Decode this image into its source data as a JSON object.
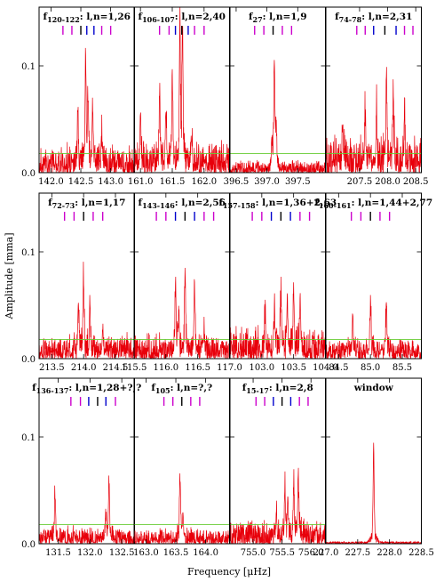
{
  "figure": {
    "xlabel": "Frequency [μHz]",
    "ylabel": "Amplitude [mma]",
    "colors": {
      "signal": "#e8000b",
      "threshold": "#66cc33",
      "dipole": "#cc00cc",
      "quadrupole": "#0000cc",
      "central": "#000000"
    }
  },
  "chart_data": [
    {
      "type": "line",
      "row": 0,
      "col": 0,
      "title_main": "f",
      "title_sub": "120-122",
      "title_tail": ": l,n=1,26",
      "xlim": [
        141.8,
        143.4
      ],
      "xticks": [
        142.0,
        142.5,
        143.0
      ],
      "xticklabels": [
        "142.0",
        "142.5",
        "143.0"
      ],
      "ylim": [
        0,
        0.155
      ],
      "yticks": [
        0.0,
        0.1
      ],
      "yticklabels": [
        "0.0",
        "0.1"
      ],
      "threshold": 0.018,
      "ticks": [
        {
          "x": 142.2,
          "c": "m"
        },
        {
          "x": 142.35,
          "c": "m"
        },
        {
          "x": 142.5,
          "c": "k"
        },
        {
          "x": 142.6,
          "c": "b"
        },
        {
          "x": 142.72,
          "c": "b"
        },
        {
          "x": 142.85,
          "c": "m"
        },
        {
          "x": 143.0,
          "c": "m"
        }
      ],
      "peaks": [
        {
          "x": 142.58,
          "a": 0.085
        },
        {
          "x": 142.7,
          "a": 0.05
        },
        {
          "x": 142.45,
          "a": 0.04
        },
        {
          "x": 142.62,
          "a": 0.055
        },
        {
          "x": 142.85,
          "a": 0.032
        }
      ],
      "noise": 0.018,
      "seed": 11
    },
    {
      "type": "line",
      "row": 0,
      "col": 1,
      "title_main": "f",
      "title_sub": "106-107",
      "title_tail": ": l,n=2,40",
      "xlim": [
        160.9,
        162.4
      ],
      "xticks": [
        161.0,
        161.5,
        162.0
      ],
      "xticklabels": [
        "161.0",
        "161.5",
        "162.0"
      ],
      "ylim": [
        0,
        0.155
      ],
      "yticks": [
        0.0,
        0.1
      ],
      "yticklabels": [
        "0.0",
        "0.1"
      ],
      "threshold": 0.018,
      "ticks": [
        {
          "x": 161.3,
          "c": "m"
        },
        {
          "x": 161.45,
          "c": "m"
        },
        {
          "x": 161.55,
          "c": "b"
        },
        {
          "x": 161.65,
          "c": "k"
        },
        {
          "x": 161.75,
          "c": "b"
        },
        {
          "x": 161.85,
          "c": "m"
        },
        {
          "x": 162.0,
          "c": "m"
        }
      ],
      "peaks": [
        {
          "x": 161.62,
          "a": 0.122
        },
        {
          "x": 161.66,
          "a": 0.118
        },
        {
          "x": 161.5,
          "a": 0.085
        },
        {
          "x": 161.3,
          "a": 0.06
        },
        {
          "x": 161.0,
          "a": 0.045
        },
        {
          "x": 161.8,
          "a": 0.03
        },
        {
          "x": 161.4,
          "a": 0.05
        }
      ],
      "noise": 0.02,
      "seed": 23
    },
    {
      "type": "line",
      "row": 0,
      "col": 2,
      "title_main": "f",
      "title_sub": "27",
      "title_tail": ": l,n=1,9",
      "xlim": [
        396.4,
        397.95
      ],
      "xticks": [
        396.5,
        397.0,
        397.5
      ],
      "xticklabels": [
        "396.5",
        "397.0",
        "397.5"
      ],
      "ylim": [
        0,
        0.155
      ],
      "yticks": [
        0.0,
        0.1
      ],
      "yticklabels": [
        "0.0",
        "0.1"
      ],
      "threshold": 0.018,
      "ticks": [
        {
          "x": 396.8,
          "c": "m"
        },
        {
          "x": 396.95,
          "c": "m"
        },
        {
          "x": 397.1,
          "c": "k"
        },
        {
          "x": 397.25,
          "c": "m"
        },
        {
          "x": 397.4,
          "c": "m"
        }
      ],
      "peaks": [
        {
          "x": 397.12,
          "a": 0.1
        },
        {
          "x": 397.15,
          "a": 0.035
        },
        {
          "x": 397.08,
          "a": 0.028
        }
      ],
      "noise": 0.008,
      "seed": 37
    },
    {
      "type": "line",
      "row": 0,
      "col": 3,
      "title_main": "f",
      "title_sub": "74-78",
      "title_tail": ": l,n=2,31",
      "xlim": [
        206.9,
        208.6
      ],
      "xticks": [
        207.5,
        208.0,
        208.5
      ],
      "xticklabels": [
        "207.5",
        "208.0",
        "208.5"
      ],
      "ylim": [
        0,
        0.155
      ],
      "yticks": [
        0.0,
        0.1
      ],
      "yticklabels": [
        "0.0",
        "0.1"
      ],
      "threshold": 0.018,
      "ticks": [
        {
          "x": 207.45,
          "c": "m"
        },
        {
          "x": 207.6,
          "c": "m"
        },
        {
          "x": 207.75,
          "c": "b"
        },
        {
          "x": 207.95,
          "c": "k"
        },
        {
          "x": 208.15,
          "c": "b"
        },
        {
          "x": 208.3,
          "c": "m"
        },
        {
          "x": 208.45,
          "c": "m"
        }
      ],
      "peaks": [
        {
          "x": 207.98,
          "a": 0.082
        },
        {
          "x": 208.1,
          "a": 0.065
        },
        {
          "x": 207.8,
          "a": 0.055
        },
        {
          "x": 207.6,
          "a": 0.05
        },
        {
          "x": 208.3,
          "a": 0.045
        },
        {
          "x": 207.2,
          "a": 0.035
        }
      ],
      "noise": 0.024,
      "seed": 41
    },
    {
      "type": "line",
      "row": 1,
      "col": 0,
      "title_main": "f",
      "title_sub": "72-73",
      "title_tail": ": l,n=1,17",
      "xlim": [
        213.3,
        214.8
      ],
      "xticks": [
        213.5,
        214.0,
        214.5
      ],
      "xticklabels": [
        "213.5",
        "214.0",
        "214.5"
      ],
      "ylim": [
        0,
        0.155
      ],
      "yticks": [
        0.0,
        0.1
      ],
      "yticklabels": [
        "0.0",
        "0.1"
      ],
      "threshold": 0.018,
      "ticks": [
        {
          "x": 213.7,
          "c": "m"
        },
        {
          "x": 213.85,
          "c": "m"
        },
        {
          "x": 214.0,
          "c": "k"
        },
        {
          "x": 214.15,
          "c": "m"
        },
        {
          "x": 214.3,
          "c": "m"
        }
      ],
      "peaks": [
        {
          "x": 214.0,
          "a": 0.07
        },
        {
          "x": 213.92,
          "a": 0.045
        },
        {
          "x": 214.1,
          "a": 0.045
        },
        {
          "x": 214.3,
          "a": 0.022
        }
      ],
      "noise": 0.016,
      "seed": 53
    },
    {
      "type": "line",
      "row": 1,
      "col": 1,
      "title_main": "f",
      "title_sub": "143-146",
      "title_tail": ": l,n=2,56",
      "xlim": [
        115.5,
        117.0
      ],
      "xticks": [
        115.5,
        116.0,
        116.5,
        117.0
      ],
      "xticklabels": [
        "115.5",
        "116.0",
        "116.5",
        "117.0"
      ],
      "ylim": [
        0,
        0.155
      ],
      "yticks": [
        0.0,
        0.1
      ],
      "yticklabels": [
        "0.0",
        "0.1"
      ],
      "threshold": 0.018,
      "ticks": [
        {
          "x": 115.85,
          "c": "m"
        },
        {
          "x": 116.0,
          "c": "m"
        },
        {
          "x": 116.15,
          "c": "b"
        },
        {
          "x": 116.3,
          "c": "k"
        },
        {
          "x": 116.45,
          "c": "b"
        },
        {
          "x": 116.6,
          "c": "m"
        },
        {
          "x": 116.75,
          "c": "m"
        }
      ],
      "peaks": [
        {
          "x": 116.3,
          "a": 0.07
        },
        {
          "x": 116.15,
          "a": 0.055
        },
        {
          "x": 116.45,
          "a": 0.055
        },
        {
          "x": 116.2,
          "a": 0.035
        },
        {
          "x": 116.6,
          "a": 0.025
        }
      ],
      "noise": 0.016,
      "seed": 67
    },
    {
      "type": "line",
      "row": 1,
      "col": 2,
      "title_main": "f",
      "title_sub": "157-158",
      "title_tail": ": l,n=1,36+2,63",
      "xlim": [
        102.5,
        104.0
      ],
      "xticks": [
        103.0,
        103.5,
        104.0
      ],
      "xticklabels": [
        "103.0",
        "103.5",
        "104.0"
      ],
      "ylim": [
        0,
        0.155
      ],
      "yticks": [
        0.0,
        0.1
      ],
      "yticklabels": [
        "0.0",
        "0.1"
      ],
      "threshold": 0.018,
      "ticks": [
        {
          "x": 102.85,
          "c": "m"
        },
        {
          "x": 103.0,
          "c": "m"
        },
        {
          "x": 103.15,
          "c": "b"
        },
        {
          "x": 103.3,
          "c": "k"
        },
        {
          "x": 103.45,
          "c": "b"
        },
        {
          "x": 103.6,
          "c": "m"
        },
        {
          "x": 103.75,
          "c": "m"
        }
      ],
      "peaks": [
        {
          "x": 103.5,
          "a": 0.055
        },
        {
          "x": 103.3,
          "a": 0.052
        },
        {
          "x": 103.4,
          "a": 0.045
        },
        {
          "x": 103.2,
          "a": 0.038
        },
        {
          "x": 103.6,
          "a": 0.035
        },
        {
          "x": 103.05,
          "a": 0.03
        }
      ],
      "noise": 0.02,
      "seed": 71
    },
    {
      "type": "line",
      "row": 1,
      "col": 3,
      "title_main": "f",
      "title_sub": "160-161",
      "title_tail": ": l,n=1,44+2,77",
      "xlim": [
        84.3,
        85.8
      ],
      "xticks": [
        84.5,
        85.0,
        85.5
      ],
      "xticklabels": [
        "84.5",
        "85.0",
        "85.5"
      ],
      "ylim": [
        0,
        0.155
      ],
      "yticks": [
        0.0,
        0.1
      ],
      "yticklabels": [
        "0.0",
        "0.1"
      ],
      "threshold": 0.018,
      "ticks": [
        {
          "x": 84.7,
          "c": "m"
        },
        {
          "x": 84.85,
          "c": "m"
        },
        {
          "x": 85.0,
          "c": "k"
        },
        {
          "x": 85.15,
          "c": "m"
        },
        {
          "x": 85.3,
          "c": "m"
        }
      ],
      "peaks": [
        {
          "x": 85.0,
          "a": 0.055
        },
        {
          "x": 85.25,
          "a": 0.045
        },
        {
          "x": 84.72,
          "a": 0.035
        }
      ],
      "noise": 0.013,
      "seed": 83
    },
    {
      "type": "line",
      "row": 2,
      "col": 0,
      "title_main": "f",
      "title_sub": "136-137",
      "title_tail": ": l,n=1,28+?,?",
      "xlim": [
        131.2,
        132.7
      ],
      "xticks": [
        131.5,
        132.0,
        132.5
      ],
      "xticklabels": [
        "131.5",
        "132.0",
        "132.5"
      ],
      "ylim": [
        0,
        0.155
      ],
      "yticks": [
        0.0,
        0.1
      ],
      "yticklabels": [
        "0.0",
        "0.1"
      ],
      "threshold": 0.018,
      "ticks": [
        {
          "x": 131.7,
          "c": "m"
        },
        {
          "x": 131.85,
          "c": "m"
        },
        {
          "x": 131.98,
          "c": "b"
        },
        {
          "x": 132.12,
          "c": "k"
        },
        {
          "x": 132.25,
          "c": "b"
        },
        {
          "x": 132.4,
          "c": "m"
        }
      ],
      "peaks": [
        {
          "x": 131.45,
          "a": 0.047
        },
        {
          "x": 132.3,
          "a": 0.05
        },
        {
          "x": 132.25,
          "a": 0.022
        }
      ],
      "noise": 0.011,
      "seed": 97
    },
    {
      "type": "line",
      "row": 2,
      "col": 1,
      "title_main": "f",
      "title_sub": "105",
      "title_tail": ": l,n=?,?",
      "xlim": [
        162.8,
        164.4
      ],
      "xticks": [
        163.0,
        163.5,
        164.0
      ],
      "xticklabels": [
        "163.0",
        "163.5",
        "164.0"
      ],
      "ylim": [
        0,
        0.155
      ],
      "yticks": [
        0.0,
        0.1
      ],
      "yticklabels": [
        "0.0",
        "0.1"
      ],
      "threshold": 0.018,
      "ticks": [
        {
          "x": 163.3,
          "c": "m"
        },
        {
          "x": 163.45,
          "c": "m"
        },
        {
          "x": 163.6,
          "c": "k"
        },
        {
          "x": 163.75,
          "c": "m"
        },
        {
          "x": 163.9,
          "c": "m"
        }
      ],
      "peaks": [
        {
          "x": 163.57,
          "a": 0.06
        },
        {
          "x": 163.62,
          "a": 0.025
        }
      ],
      "noise": 0.01,
      "seed": 101
    },
    {
      "type": "line",
      "row": 2,
      "col": 2,
      "title_main": "f",
      "title_sub": "15-17",
      "title_tail": ": l,n=2,8",
      "xlim": [
        754.6,
        756.25
      ],
      "xticks": [
        755.0,
        755.5,
        756.0
      ],
      "xticklabels": [
        "755.0",
        "755.5",
        "756.0"
      ],
      "ylim": [
        0,
        0.155
      ],
      "yticks": [
        0.0,
        0.1
      ],
      "yticklabels": [
        "0.0",
        "0.1"
      ],
      "threshold": 0.018,
      "ticks": [
        {
          "x": 755.05,
          "c": "m"
        },
        {
          "x": 755.2,
          "c": "m"
        },
        {
          "x": 755.35,
          "c": "b"
        },
        {
          "x": 755.5,
          "c": "k"
        },
        {
          "x": 755.65,
          "c": "b"
        },
        {
          "x": 755.8,
          "c": "m"
        },
        {
          "x": 755.95,
          "c": "m"
        }
      ],
      "peaks": [
        {
          "x": 755.78,
          "a": 0.06
        },
        {
          "x": 755.7,
          "a": 0.055
        },
        {
          "x": 755.55,
          "a": 0.045
        },
        {
          "x": 755.6,
          "a": 0.035
        },
        {
          "x": 755.4,
          "a": 0.025
        }
      ],
      "noise": 0.016,
      "seed": 113
    },
    {
      "type": "line",
      "row": 2,
      "col": 3,
      "title_main": "window",
      "title_sub": "",
      "title_tail": "",
      "xlim": [
        227.0,
        228.5
      ],
      "xticks": [
        227.0,
        227.5,
        228.0,
        228.5
      ],
      "xticklabels": [
        "227.0",
        "227.5",
        "228.0",
        "228.5"
      ],
      "ylim": [
        0,
        0.155
      ],
      "yticks": [
        0.0,
        0.1
      ],
      "yticklabels": [
        "0.0",
        "0.1"
      ],
      "threshold": null,
      "ticks": [],
      "window": {
        "center": 227.75,
        "a": 0.08
      },
      "peaks": [],
      "noise": 0,
      "seed": 7
    }
  ]
}
